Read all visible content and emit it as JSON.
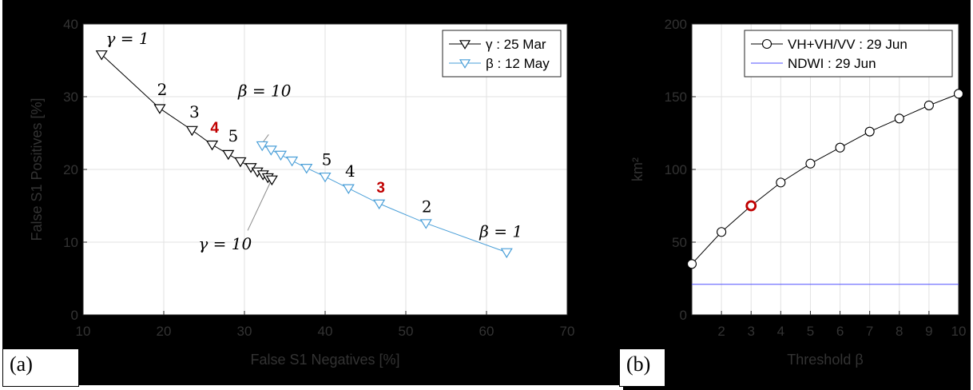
{
  "chart_data": [
    {
      "type": "line",
      "panel": "a",
      "panel_label": "(a)",
      "xlabel": "False S1 Negatives [%]",
      "ylabel": "False S1 Positives [%]",
      "xlim": [
        10,
        70
      ],
      "ylim": [
        0,
        40
      ],
      "xticks": [
        10,
        20,
        30,
        40,
        50,
        60,
        70
      ],
      "yticks": [
        0,
        10,
        20,
        30,
        40
      ],
      "grid": true,
      "legend_position": "top-right",
      "series": [
        {
          "name": "γ : 25 Mar",
          "marker": "triangle-down",
          "color": "#000000",
          "x": [
            12.3,
            19.5,
            23.5,
            26.0,
            28.0,
            29.5,
            30.8,
            31.6,
            32.3,
            32.9,
            33.4
          ],
          "y": [
            35.8,
            28.4,
            25.4,
            23.4,
            22.1,
            21.1,
            20.3,
            19.7,
            19.3,
            18.9,
            18.6
          ]
        },
        {
          "name": "β : 12 May",
          "marker": "triangle-down",
          "color": "#4a9fd8",
          "x": [
            62.5,
            52.5,
            46.7,
            42.9,
            40.0,
            37.7,
            35.9,
            34.5,
            33.3,
            32.2
          ],
          "y": [
            8.6,
            12.6,
            15.3,
            17.4,
            19.0,
            20.2,
            21.2,
            22.0,
            22.7,
            23.3
          ]
        }
      ],
      "annotations": [
        {
          "text": "γ = 1",
          "x": 15.5,
          "y": 38.0,
          "color": "#000000"
        },
        {
          "text": "2",
          "x": 19.8,
          "y": 31.0,
          "color": "#000000"
        },
        {
          "text": "3",
          "x": 23.8,
          "y": 27.9,
          "color": "#000000"
        },
        {
          "text": "4",
          "x": 26.3,
          "y": 25.8,
          "color": "#c00000"
        },
        {
          "text": "5",
          "x": 28.6,
          "y": 24.6,
          "color": "#000000"
        },
        {
          "text": "β = 10",
          "x": 32.5,
          "y": 30.8,
          "color": "#000000"
        },
        {
          "text": "5",
          "x": 40.2,
          "y": 21.4,
          "color": "#000000"
        },
        {
          "text": "4",
          "x": 43.1,
          "y": 19.8,
          "color": "#000000"
        },
        {
          "text": "3",
          "x": 46.9,
          "y": 17.6,
          "color": "#c00000"
        },
        {
          "text": "2",
          "x": 52.6,
          "y": 14.9,
          "color": "#000000"
        },
        {
          "text": "β = 1",
          "x": 61.8,
          "y": 11.5,
          "color": "#000000"
        },
        {
          "text": "γ = 10",
          "x": 27.6,
          "y": 9.8,
          "color": "#000000"
        }
      ],
      "leaders": [
        {
          "from": [
            33.0,
            24.8
          ],
          "to": [
            32.2,
            23.6
          ]
        },
        {
          "from": [
            30.4,
            11.6
          ],
          "to": [
            33.2,
            18.2
          ]
        }
      ]
    },
    {
      "type": "line",
      "panel": "b",
      "panel_label": "(b)",
      "xlabel": "Threshold β",
      "ylabel": "km²",
      "xlim": [
        1,
        10
      ],
      "ylim": [
        0,
        200
      ],
      "xticks": [
        2,
        3,
        4,
        5,
        6,
        7,
        8,
        9,
        10
      ],
      "yticks": [
        0,
        50,
        100,
        150,
        200
      ],
      "grid": true,
      "legend_position": "top-right",
      "series": [
        {
          "name": "VH+VH/VV : 29 Jun",
          "marker": "circle",
          "color": "#000000",
          "x": [
            1,
            2,
            3,
            4,
            5,
            6,
            7,
            8,
            9,
            10
          ],
          "y": [
            35,
            57,
            75,
            91,
            104,
            115,
            126,
            135,
            144,
            152
          ],
          "highlight_index": 2,
          "highlight_color": "#c00000"
        },
        {
          "name": "NDWI : 29 Jun",
          "marker": "none",
          "color": "#5050ff",
          "x": [
            1,
            10
          ],
          "y": [
            21,
            21
          ]
        }
      ]
    }
  ]
}
